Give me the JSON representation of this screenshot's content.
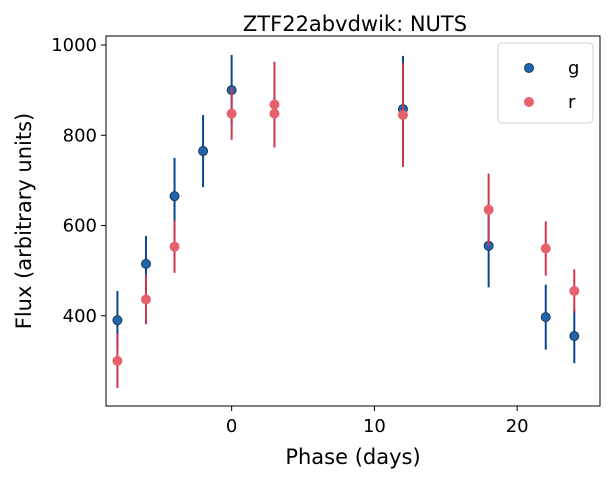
{
  "chart_data": {
    "type": "scatter",
    "title": "ZTF22abvdwik: NUTS",
    "xlabel": "Phase (days)",
    "ylabel": "Flux (arbitrary units)",
    "xlim": [
      -8.8,
      25.8
    ],
    "ylim": [
      200,
      1020
    ],
    "x_ticks": [
      0,
      10,
      20
    ],
    "y_ticks": [
      400,
      600,
      800,
      1000
    ],
    "grid": false,
    "legend_position": "top-right",
    "series": [
      {
        "name": "g",
        "color": "#2166ac",
        "errcolor": "#08478c",
        "points": [
          {
            "x": -8,
            "y": 390,
            "err": 65
          },
          {
            "x": -6,
            "y": 515,
            "err": 62
          },
          {
            "x": -4,
            "y": 665,
            "err": 85
          },
          {
            "x": -2,
            "y": 765,
            "err": 80
          },
          {
            "x": 0,
            "y": 900,
            "err": 78
          },
          {
            "x": 12,
            "y": 858,
            "err": 118
          },
          {
            "x": 18,
            "y": 555,
            "err": 92
          },
          {
            "x": 22,
            "y": 397,
            "err": 72
          },
          {
            "x": 24,
            "y": 355,
            "err": 60
          }
        ]
      },
      {
        "name": "r",
        "color": "#e8606e",
        "errcolor": "#c83a52",
        "points": [
          {
            "x": -8,
            "y": 300,
            "err": 60
          },
          {
            "x": -6,
            "y": 436,
            "err": 55
          },
          {
            "x": -4,
            "y": 553,
            "err": 58
          },
          {
            "x": 0,
            "y": 848,
            "err": 58
          },
          {
            "x": 3,
            "y": 848,
            "err": 68
          },
          {
            "x": 3,
            "y": 868,
            "err": 95
          },
          {
            "x": 12,
            "y": 845,
            "err": 115
          },
          {
            "x": 18,
            "y": 635,
            "err": 80
          },
          {
            "x": 22,
            "y": 549,
            "err": 60
          },
          {
            "x": 24,
            "y": 455,
            "err": 48
          }
        ]
      }
    ]
  }
}
